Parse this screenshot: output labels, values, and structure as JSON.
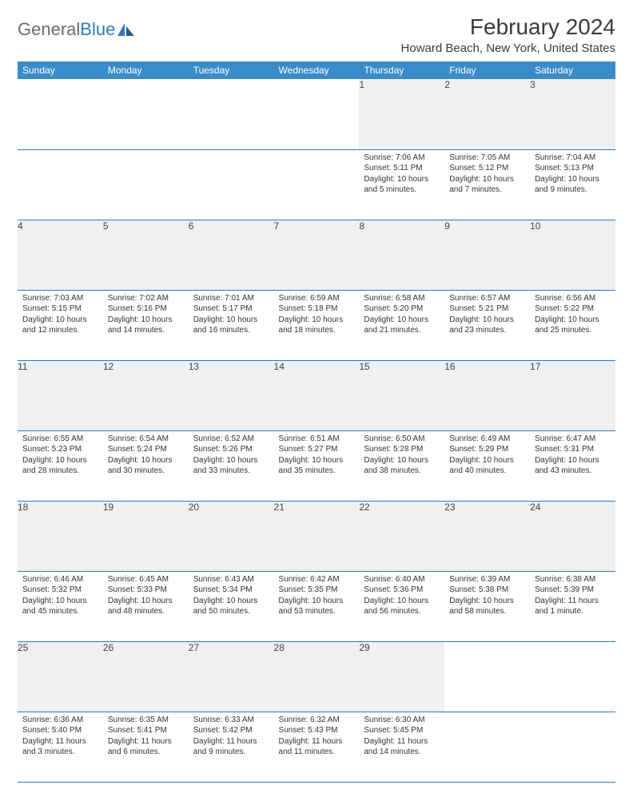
{
  "logo": {
    "part1": "General",
    "part2": "Blue"
  },
  "title": "February 2024",
  "location": "Howard Beach, New York, United States",
  "colors": {
    "header_bg": "#3a8bc9",
    "header_fg": "#ffffff",
    "daynum_bg": "#eef0f2",
    "rule": "#2f7ac0",
    "logo_gray": "#6b6b6b",
    "logo_blue": "#2f7ac0"
  },
  "daynames": [
    "Sunday",
    "Monday",
    "Tuesday",
    "Wednesday",
    "Thursday",
    "Friday",
    "Saturday"
  ],
  "weeks": [
    [
      null,
      null,
      null,
      null,
      {
        "n": "1",
        "sr": "Sunrise: 7:06 AM",
        "ss": "Sunset: 5:11 PM",
        "dl1": "Daylight: 10 hours",
        "dl2": "and 5 minutes."
      },
      {
        "n": "2",
        "sr": "Sunrise: 7:05 AM",
        "ss": "Sunset: 5:12 PM",
        "dl1": "Daylight: 10 hours",
        "dl2": "and 7 minutes."
      },
      {
        "n": "3",
        "sr": "Sunrise: 7:04 AM",
        "ss": "Sunset: 5:13 PM",
        "dl1": "Daylight: 10 hours",
        "dl2": "and 9 minutes."
      }
    ],
    [
      {
        "n": "4",
        "sr": "Sunrise: 7:03 AM",
        "ss": "Sunset: 5:15 PM",
        "dl1": "Daylight: 10 hours",
        "dl2": "and 12 minutes."
      },
      {
        "n": "5",
        "sr": "Sunrise: 7:02 AM",
        "ss": "Sunset: 5:16 PM",
        "dl1": "Daylight: 10 hours",
        "dl2": "and 14 minutes."
      },
      {
        "n": "6",
        "sr": "Sunrise: 7:01 AM",
        "ss": "Sunset: 5:17 PM",
        "dl1": "Daylight: 10 hours",
        "dl2": "and 16 minutes."
      },
      {
        "n": "7",
        "sr": "Sunrise: 6:59 AM",
        "ss": "Sunset: 5:18 PM",
        "dl1": "Daylight: 10 hours",
        "dl2": "and 18 minutes."
      },
      {
        "n": "8",
        "sr": "Sunrise: 6:58 AM",
        "ss": "Sunset: 5:20 PM",
        "dl1": "Daylight: 10 hours",
        "dl2": "and 21 minutes."
      },
      {
        "n": "9",
        "sr": "Sunrise: 6:57 AM",
        "ss": "Sunset: 5:21 PM",
        "dl1": "Daylight: 10 hours",
        "dl2": "and 23 minutes."
      },
      {
        "n": "10",
        "sr": "Sunrise: 6:56 AM",
        "ss": "Sunset: 5:22 PM",
        "dl1": "Daylight: 10 hours",
        "dl2": "and 25 minutes."
      }
    ],
    [
      {
        "n": "11",
        "sr": "Sunrise: 6:55 AM",
        "ss": "Sunset: 5:23 PM",
        "dl1": "Daylight: 10 hours",
        "dl2": "and 28 minutes."
      },
      {
        "n": "12",
        "sr": "Sunrise: 6:54 AM",
        "ss": "Sunset: 5:24 PM",
        "dl1": "Daylight: 10 hours",
        "dl2": "and 30 minutes."
      },
      {
        "n": "13",
        "sr": "Sunrise: 6:52 AM",
        "ss": "Sunset: 5:26 PM",
        "dl1": "Daylight: 10 hours",
        "dl2": "and 33 minutes."
      },
      {
        "n": "14",
        "sr": "Sunrise: 6:51 AM",
        "ss": "Sunset: 5:27 PM",
        "dl1": "Daylight: 10 hours",
        "dl2": "and 35 minutes."
      },
      {
        "n": "15",
        "sr": "Sunrise: 6:50 AM",
        "ss": "Sunset: 5:28 PM",
        "dl1": "Daylight: 10 hours",
        "dl2": "and 38 minutes."
      },
      {
        "n": "16",
        "sr": "Sunrise: 6:49 AM",
        "ss": "Sunset: 5:29 PM",
        "dl1": "Daylight: 10 hours",
        "dl2": "and 40 minutes."
      },
      {
        "n": "17",
        "sr": "Sunrise: 6:47 AM",
        "ss": "Sunset: 5:31 PM",
        "dl1": "Daylight: 10 hours",
        "dl2": "and 43 minutes."
      }
    ],
    [
      {
        "n": "18",
        "sr": "Sunrise: 6:46 AM",
        "ss": "Sunset: 5:32 PM",
        "dl1": "Daylight: 10 hours",
        "dl2": "and 45 minutes."
      },
      {
        "n": "19",
        "sr": "Sunrise: 6:45 AM",
        "ss": "Sunset: 5:33 PM",
        "dl1": "Daylight: 10 hours",
        "dl2": "and 48 minutes."
      },
      {
        "n": "20",
        "sr": "Sunrise: 6:43 AM",
        "ss": "Sunset: 5:34 PM",
        "dl1": "Daylight: 10 hours",
        "dl2": "and 50 minutes."
      },
      {
        "n": "21",
        "sr": "Sunrise: 6:42 AM",
        "ss": "Sunset: 5:35 PM",
        "dl1": "Daylight: 10 hours",
        "dl2": "and 53 minutes."
      },
      {
        "n": "22",
        "sr": "Sunrise: 6:40 AM",
        "ss": "Sunset: 5:36 PM",
        "dl1": "Daylight: 10 hours",
        "dl2": "and 56 minutes."
      },
      {
        "n": "23",
        "sr": "Sunrise: 6:39 AM",
        "ss": "Sunset: 5:38 PM",
        "dl1": "Daylight: 10 hours",
        "dl2": "and 58 minutes."
      },
      {
        "n": "24",
        "sr": "Sunrise: 6:38 AM",
        "ss": "Sunset: 5:39 PM",
        "dl1": "Daylight: 11 hours",
        "dl2": "and 1 minute."
      }
    ],
    [
      {
        "n": "25",
        "sr": "Sunrise: 6:36 AM",
        "ss": "Sunset: 5:40 PM",
        "dl1": "Daylight: 11 hours",
        "dl2": "and 3 minutes."
      },
      {
        "n": "26",
        "sr": "Sunrise: 6:35 AM",
        "ss": "Sunset: 5:41 PM",
        "dl1": "Daylight: 11 hours",
        "dl2": "and 6 minutes."
      },
      {
        "n": "27",
        "sr": "Sunrise: 6:33 AM",
        "ss": "Sunset: 5:42 PM",
        "dl1": "Daylight: 11 hours",
        "dl2": "and 9 minutes."
      },
      {
        "n": "28",
        "sr": "Sunrise: 6:32 AM",
        "ss": "Sunset: 5:43 PM",
        "dl1": "Daylight: 11 hours",
        "dl2": "and 11 minutes."
      },
      {
        "n": "29",
        "sr": "Sunrise: 6:30 AM",
        "ss": "Sunset: 5:45 PM",
        "dl1": "Daylight: 11 hours",
        "dl2": "and 14 minutes."
      },
      null,
      null
    ]
  ]
}
